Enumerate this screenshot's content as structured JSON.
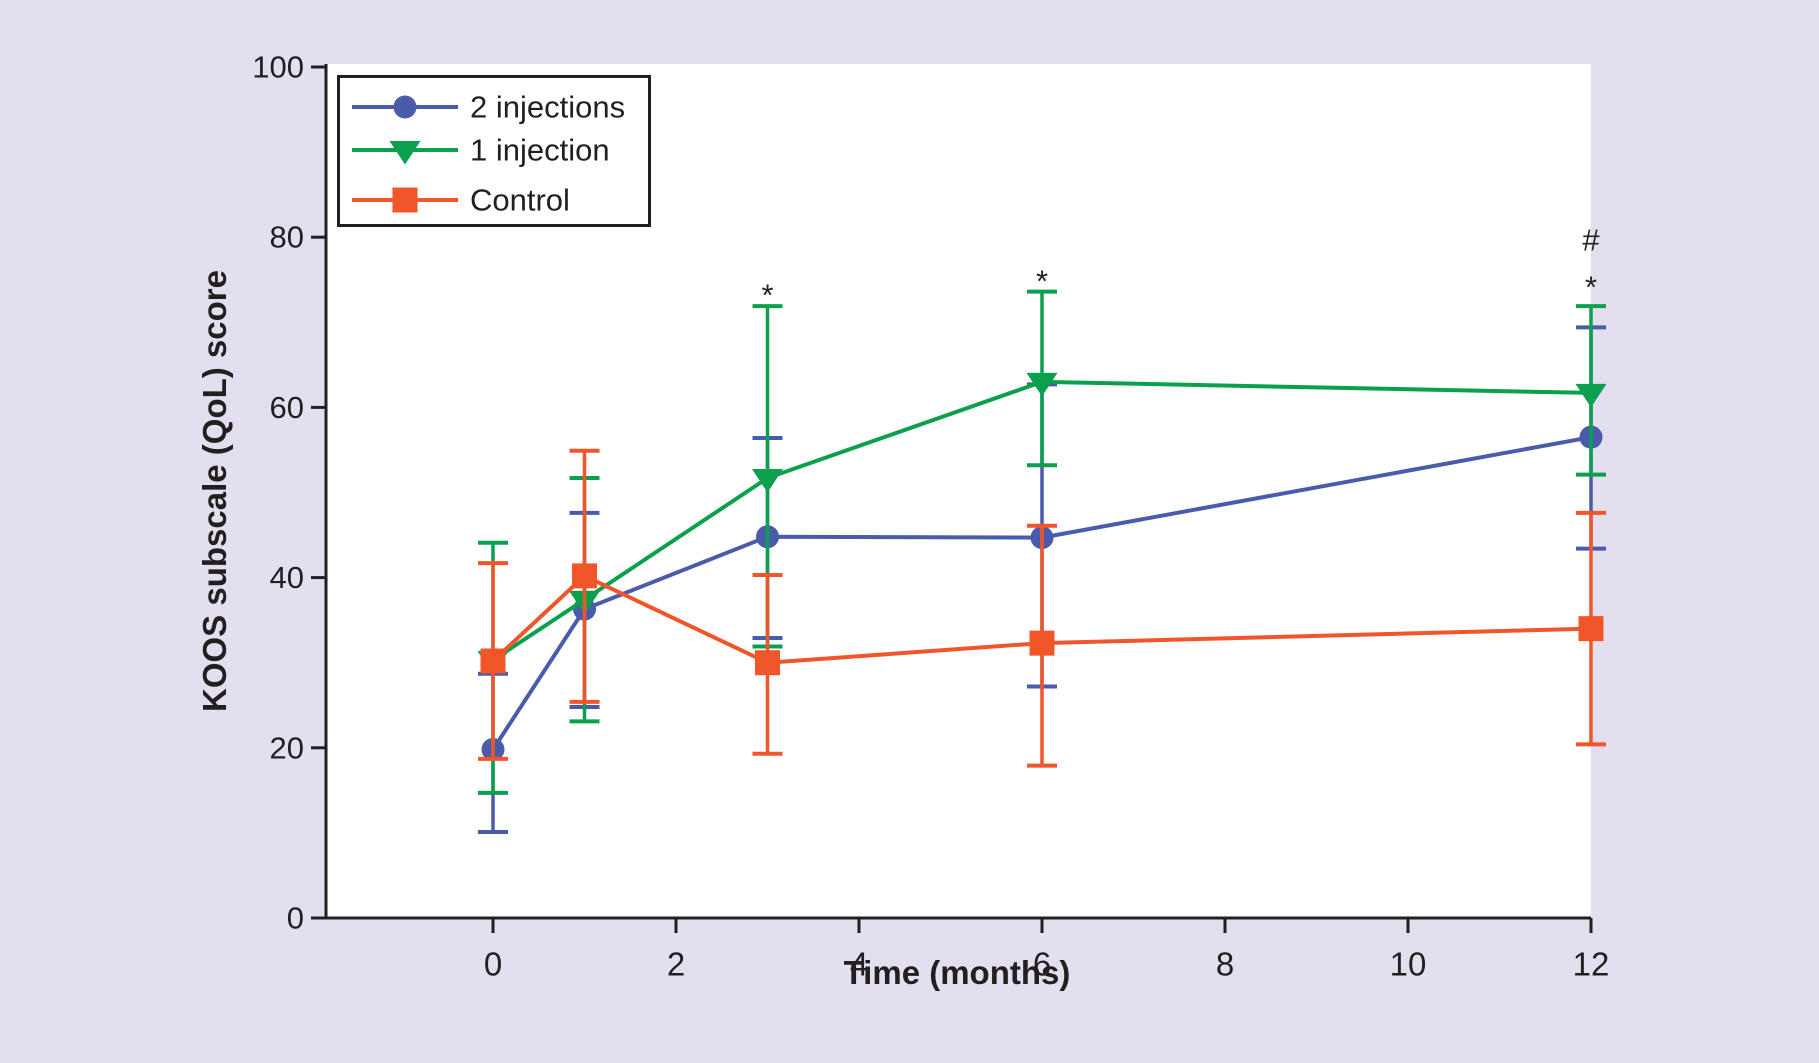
{
  "figure": {
    "background_color": "#e4dfee",
    "plot_background_color": "#ffffff",
    "axis_color": "#231f20",
    "legend_border_color": "#231f20",
    "legend_background_color": "#ffffff"
  },
  "chart_data": {
    "type": "line",
    "title": "",
    "xlabel": "Time (months)",
    "ylabel": "KOOS subscale (QoL) score",
    "x_ticks": [
      0,
      2,
      4,
      6,
      8,
      10,
      12
    ],
    "y_ticks": [
      0,
      20,
      40,
      60,
      80,
      100
    ],
    "xlim": [
      -1.83,
      12
    ],
    "ylim": [
      0,
      100
    ],
    "grid": false,
    "legend_position": "top-left",
    "x": [
      0,
      1,
      3,
      6,
      12
    ],
    "series": [
      {
        "name": "2 injections",
        "marker": "circle",
        "color": "#4a5bab",
        "values": [
          19.8,
          36.3,
          44.8,
          44.7,
          56.5
        ],
        "err_low": [
          10.1,
          24.8,
          32.9,
          27.2,
          43.4
        ],
        "err_high": [
          28.7,
          47.6,
          56.4,
          62.7,
          69.4
        ]
      },
      {
        "name": "1 injection",
        "marker": "triangle-down",
        "color": "#0ba04e",
        "values": [
          30.3,
          37.4,
          51.7,
          63.0,
          61.7
        ],
        "err_low": [
          14.7,
          23.1,
          31.9,
          53.2,
          52.1
        ],
        "err_high": [
          44.1,
          51.7,
          71.9,
          73.6,
          71.9
        ]
      },
      {
        "name": "Control",
        "marker": "square",
        "color": "#f1562a",
        "values": [
          30.2,
          40.2,
          30.0,
          32.3,
          34.0
        ],
        "err_low": [
          18.7,
          25.4,
          19.3,
          17.9,
          20.4
        ],
        "err_high": [
          41.7,
          54.9,
          40.3,
          46.1,
          47.6
        ]
      }
    ],
    "annotations": [
      {
        "x": 3,
        "y": 74.4,
        "text": "*"
      },
      {
        "x": 6,
        "y": 76.0,
        "text": "*"
      },
      {
        "x": 12,
        "y": 79.7,
        "text": "#"
      },
      {
        "x": 12,
        "y": 75.3,
        "text": "*"
      }
    ]
  }
}
